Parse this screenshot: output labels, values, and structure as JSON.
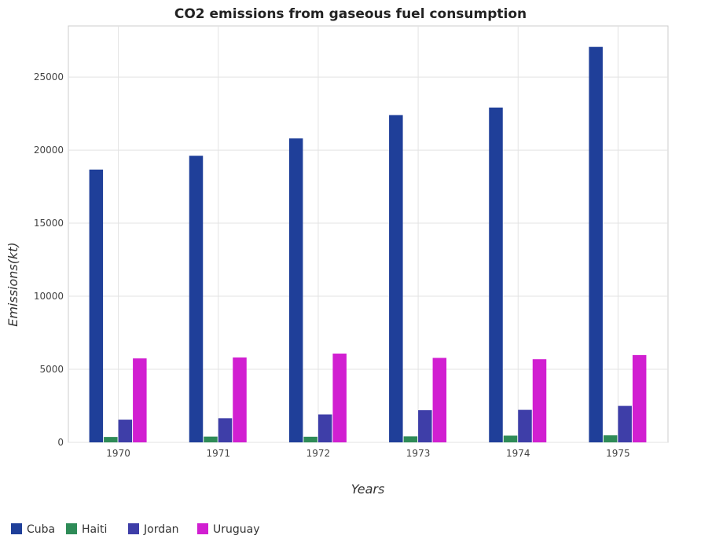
{
  "chart_data": {
    "type": "bar",
    "title": "CO2 emissions from gaseous fuel consumption",
    "xlabel": "Years",
    "ylabel": "Emissions(kt)",
    "categories": [
      "1970",
      "1971",
      "1972",
      "1973",
      "1974",
      "1975"
    ],
    "ylim": [
      0,
      28500
    ],
    "yticks": [
      0,
      5000,
      10000,
      15000,
      20000,
      25000
    ],
    "grid": true,
    "legend_position": "bottom-left",
    "series": [
      {
        "name": "Cuba",
        "color": "#1f3f99",
        "values": [
          18670,
          19615,
          20800,
          22400,
          22915,
          27065
        ]
      },
      {
        "name": "Haiti",
        "color": "#2e8b57",
        "values": [
          370,
          395,
          385,
          410,
          460,
          480
        ]
      },
      {
        "name": "Jordan",
        "color": "#3e3ea8",
        "values": [
          1555,
          1650,
          1910,
          2200,
          2225,
          2495
        ]
      },
      {
        "name": "Uruguay",
        "color": "#d11fd1",
        "values": [
          5745,
          5810,
          6075,
          5780,
          5690,
          5975
        ]
      }
    ]
  }
}
